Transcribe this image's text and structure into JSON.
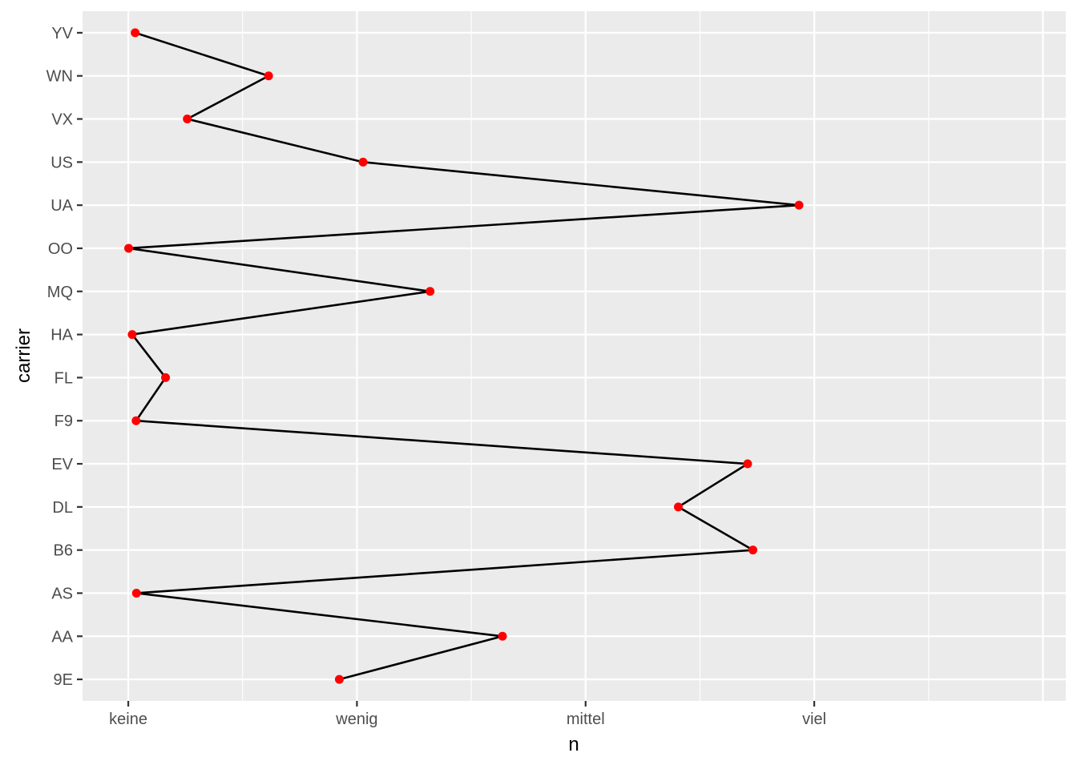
{
  "chart_data": {
    "type": "line",
    "xlabel": "n",
    "ylabel": "carrier",
    "x_ticks": [
      {
        "label": "keine",
        "value": 0
      },
      {
        "label": "wenig",
        "value": 20000
      },
      {
        "label": "mittel",
        "value": 40000
      },
      {
        "label": "viel",
        "value": 60000
      }
    ],
    "xlim": [
      -4000,
      82000
    ],
    "categories": [
      "9E",
      "AA",
      "AS",
      "B6",
      "DL",
      "EV",
      "F9",
      "FL",
      "HA",
      "MQ",
      "OO",
      "UA",
      "US",
      "VX",
      "WN",
      "YV"
    ],
    "x": [
      18460,
      32729,
      714,
      54635,
      48110,
      54173,
      685,
      3260,
      342,
      26397,
      32,
      58665,
      20536,
      5162,
      12275,
      601
    ],
    "grid": true,
    "point_color": "#ff0000",
    "line_color": "#000000",
    "panel_background": "#ebebeb",
    "grid_color": "#ffffff"
  }
}
